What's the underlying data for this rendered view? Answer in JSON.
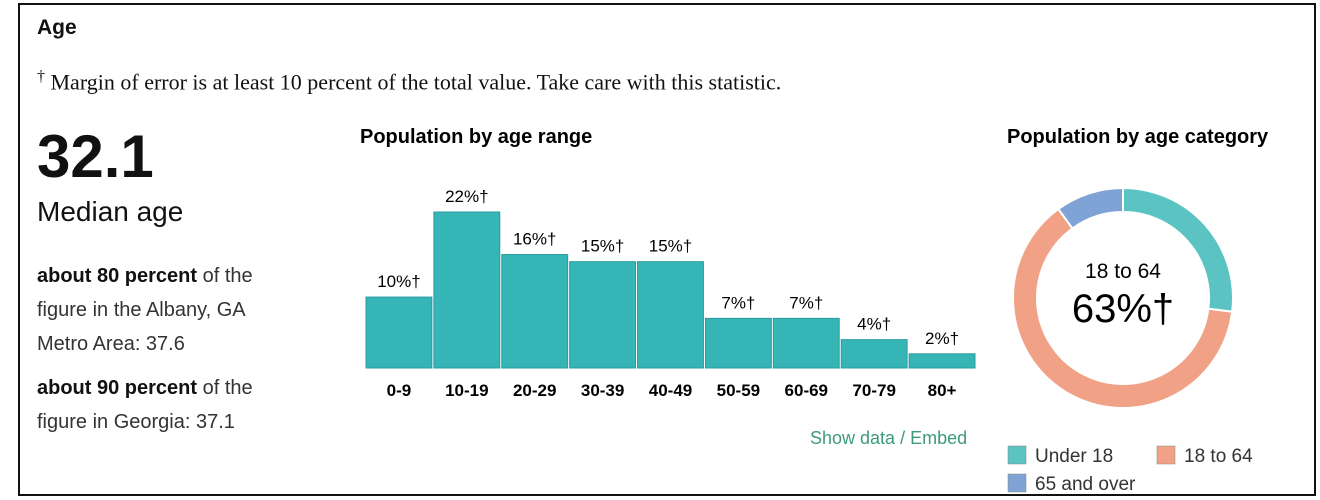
{
  "section": {
    "title": "Age",
    "note": {
      "symbol": "†",
      "text": "Margin of error is at least 10 percent of the total value. Take care with this statistic."
    },
    "median": {
      "value": "32.1",
      "label": "Median age"
    },
    "comparisons": [
      {
        "bold": "about 80 percent",
        "text": "of the figure in the Albany, GA Metro Area: 37.6"
      },
      {
        "bold": "about 90 percent",
        "text": "of the figure in Georgia: 37.1"
      }
    ],
    "links": [
      "Show data",
      "/",
      "Embed"
    ]
  },
  "chart_data": [
    {
      "type": "bar",
      "title": "Population by age range",
      "categories": [
        "0-9",
        "10-19",
        "20-29",
        "30-39",
        "40-49",
        "50-59",
        "60-69",
        "70-79",
        "80+"
      ],
      "values": [
        10,
        22,
        16,
        15,
        15,
        7,
        7,
        4,
        2
      ],
      "value_labels": [
        "10%†",
        "22%†",
        "16%†",
        "15%†",
        "15%†",
        "7%†",
        "7%†",
        "4%†",
        "2%†"
      ],
      "color": "#36b5b7"
    },
    {
      "type": "pie",
      "title": "Population by age category",
      "categories": [
        "Under 18",
        "18 to 64",
        "65 and over"
      ],
      "values": [
        27,
        63,
        10
      ],
      "value_labels": [
        null,
        "63%†",
        null
      ],
      "colors": [
        "#5bc4c3",
        "#f1a186",
        "#7fa3d4"
      ]
    }
  ]
}
